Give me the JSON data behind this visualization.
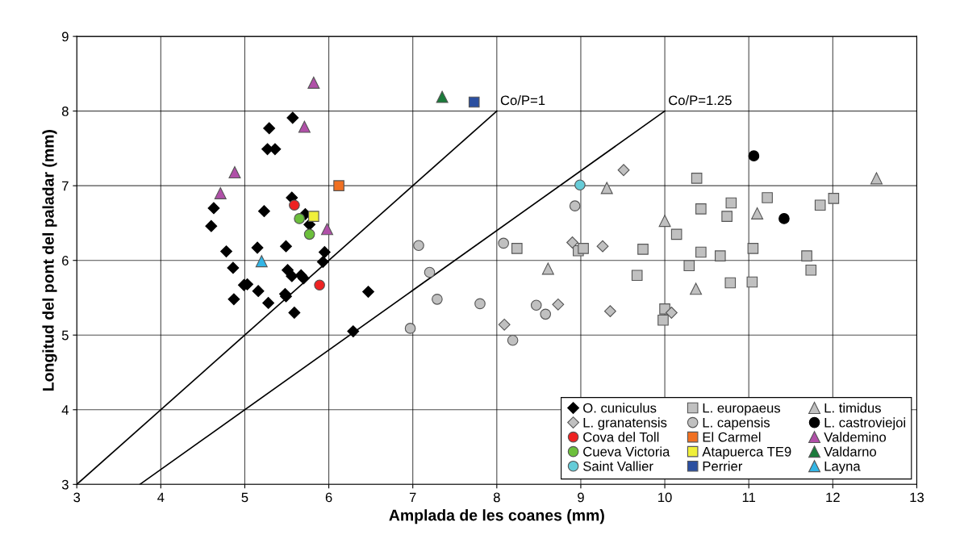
{
  "chart_data": {
    "type": "scatter",
    "xlabel": "Amplada de les coanes (mm)",
    "ylabel": "Longitud del pont del paladar (mm)",
    "xlim": [
      3,
      13
    ],
    "ylim": [
      3,
      9
    ],
    "xticks": [
      3,
      4,
      5,
      6,
      7,
      8,
      9,
      10,
      11,
      12,
      13
    ],
    "yticks": [
      3,
      4,
      5,
      6,
      7,
      8,
      9
    ],
    "grid": true,
    "legend": "bottom right",
    "annotations": [
      {
        "text": "Co/P=1",
        "x": 8,
        "y": 8
      },
      {
        "text": "Co/P=1.25",
        "x": 10,
        "y": 8
      }
    ],
    "series": [
      {
        "name": "O. cuniculus",
        "color": "#000000",
        "marker": "diamond",
        "x": [
          5.57,
          5.29,
          5.27,
          5.36,
          5.56,
          4.63,
          5.23,
          5.72,
          4.6,
          5.77,
          4.78,
          5.15,
          5.49,
          5.95,
          5.93,
          4.86,
          5.51,
          5.56,
          5.67,
          5.7,
          4.99,
          5.03,
          5.16,
          5.48,
          5.49,
          4.87,
          5.28,
          5.59,
          6.47,
          6.29
        ],
        "values": [
          7.91,
          7.77,
          7.49,
          7.49,
          6.84,
          6.7,
          6.66,
          6.62,
          6.46,
          6.48,
          6.12,
          6.17,
          6.19,
          6.11,
          5.98,
          5.9,
          5.87,
          5.79,
          5.8,
          5.76,
          5.67,
          5.68,
          5.59,
          5.55,
          5.52,
          5.48,
          5.43,
          5.3,
          5.58,
          5.05
        ]
      },
      {
        "name": "L. europaeus",
        "color": "#c0c0c0",
        "marker": "square",
        "x": [
          8.24,
          8.97,
          9.03,
          9.74,
          9.67,
          10.38,
          10.43,
          10.79,
          10.74,
          10.14,
          10.43,
          10.66,
          10.29,
          11.05,
          11.69,
          11.74,
          11.22,
          11.85,
          12.01,
          10.78,
          11.04,
          10.0,
          9.98
        ],
        "values": [
          6.16,
          6.13,
          6.16,
          6.15,
          5.8,
          7.1,
          6.69,
          6.77,
          6.59,
          6.35,
          6.11,
          6.06,
          5.93,
          6.16,
          6.06,
          5.87,
          6.84,
          6.74,
          6.83,
          5.7,
          5.71,
          5.35,
          5.2
        ]
      },
      {
        "name": "L. timidus",
        "color": "#c0c0c0",
        "marker": "triangle",
        "x": [
          9.31,
          8.61,
          10.0,
          11.1,
          10.37,
          12.52
        ],
        "values": [
          6.97,
          5.89,
          6.53,
          6.63,
          5.62,
          7.1
        ]
      },
      {
        "name": "L. granatensis",
        "color": "#c0c0c0",
        "marker": "diamond",
        "x": [
          9.51,
          8.9,
          9.26,
          8.73,
          9.35,
          8.09,
          10.08
        ],
        "values": [
          7.21,
          6.24,
          6.19,
          5.41,
          5.32,
          5.14,
          5.3
        ]
      },
      {
        "name": "L. capensis",
        "color": "#c0c0c0",
        "marker": "circle",
        "x": [
          8.93,
          7.07,
          8.08,
          7.2,
          7.29,
          7.8,
          8.47,
          8.58,
          6.97,
          8.19
        ],
        "values": [
          6.73,
          6.2,
          6.23,
          5.84,
          5.48,
          5.42,
          5.4,
          5.28,
          5.09,
          4.93
        ]
      },
      {
        "name": "L. castroviejoi",
        "color": "#000000",
        "marker": "circle",
        "x": [
          11.06,
          11.42
        ],
        "values": [
          7.4,
          6.56
        ]
      },
      {
        "name": "Cova del Toll",
        "color": "#ee2222",
        "marker": "circle",
        "x": [
          5.59,
          5.89
        ],
        "values": [
          6.74,
          5.67
        ]
      },
      {
        "name": "El Carmel",
        "color": "#f07022",
        "marker": "square",
        "x": [
          6.12
        ],
        "values": [
          7.0
        ]
      },
      {
        "name": "Valdemino",
        "color": "#b050a8",
        "marker": "triangle",
        "x": [
          5.82,
          5.71,
          4.88,
          4.71,
          5.98
        ],
        "values": [
          8.38,
          7.79,
          7.18,
          6.9,
          6.42
        ]
      },
      {
        "name": "Cueva Victoria",
        "color": "#6cbf3c",
        "marker": "circle",
        "x": [
          5.65,
          5.77
        ],
        "values": [
          6.56,
          6.35
        ]
      },
      {
        "name": "Atapuerca TE9",
        "color": "#f0f03a",
        "marker": "square",
        "x": [
          5.82
        ],
        "values": [
          6.59
        ]
      },
      {
        "name": "Valdarno",
        "color": "#1a7a3a",
        "marker": "triangle",
        "x": [
          7.35
        ],
        "values": [
          8.19
        ]
      },
      {
        "name": "Saint Vallier",
        "color": "#66ccd8",
        "marker": "circle",
        "x": [
          8.99
        ],
        "values": [
          7.01
        ]
      },
      {
        "name": "Perrier",
        "color": "#2b4fa0",
        "marker": "square",
        "x": [
          7.73
        ],
        "values": [
          8.12
        ]
      },
      {
        "name": "Layna",
        "color": "#33b5e5",
        "marker": "triangle",
        "x": [
          5.2
        ],
        "values": [
          5.99
        ]
      },
      {
        "type": "line",
        "color": "#000000",
        "marker": "none",
        "x": [
          3,
          8
        ],
        "values": [
          3,
          8
        ]
      },
      {
        "type": "line",
        "color": "#000000",
        "marker": "none",
        "x": [
          3.75,
          10
        ],
        "values": [
          3,
          8
        ]
      }
    ]
  }
}
